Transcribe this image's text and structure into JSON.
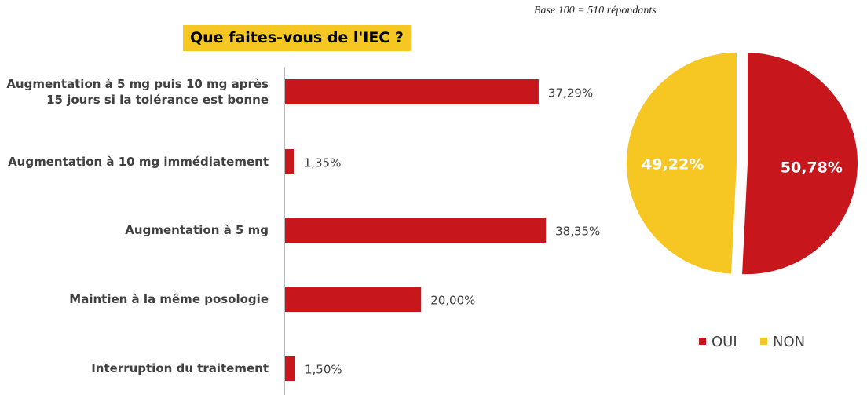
{
  "chart_data": [
    {
      "type": "bar",
      "orientation": "horizontal",
      "title": "Que faites-vous de l'IEC ?",
      "categories": [
        "Augmentation à 5 mg puis 10 mg après 15 jours si la tolérance est bonne",
        "Augmentation à 10 mg immédiatement",
        "Augmentation à 5 mg",
        "Maintien à la même posologie",
        "Interruption du traitement"
      ],
      "values": [
        37.29,
        1.35,
        38.35,
        20.0,
        1.5
      ],
      "value_labels": [
        "37,29%",
        "1,35%",
        "38,35%",
        "20,00%",
        "1,50%"
      ],
      "color": "#c8161d"
    },
    {
      "type": "pie",
      "annotation": "Base 100 = 510 répondants",
      "categories": [
        "OUI",
        "NON"
      ],
      "values": [
        50.78,
        49.22
      ],
      "value_labels": [
        "50,78%",
        "49,22%"
      ],
      "colors": [
        "#c8161d",
        "#f6c623"
      ],
      "legend": "bottom"
    }
  ]
}
